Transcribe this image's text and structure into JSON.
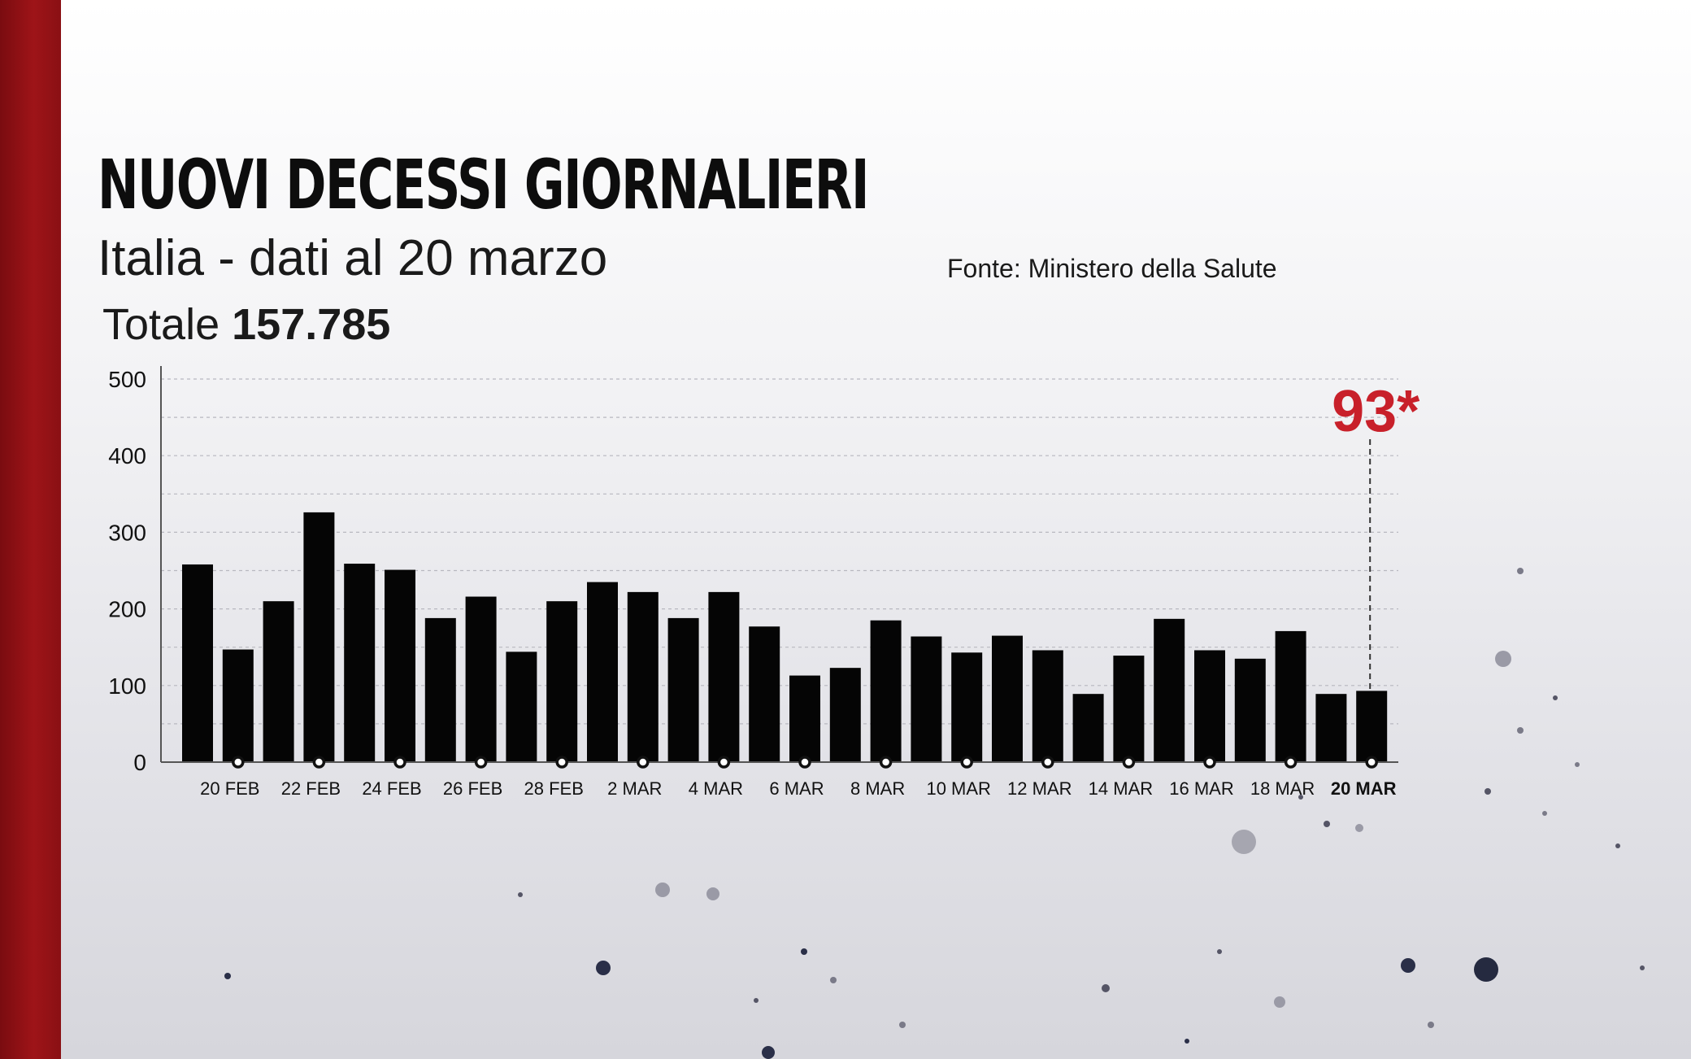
{
  "header": {
    "title": "NUOVI DECESSI GIORNALIERI",
    "subtitle": "Italia - dati al 20 marzo",
    "total_label": "Totale",
    "total_value": "157.785",
    "source": "Fonte: Ministero della Salute"
  },
  "colors": {
    "bar": "#050505",
    "accent": "#c8202a",
    "side_band": "#9e1418"
  },
  "chart_data": {
    "type": "bar",
    "title": "NUOVI DECESSI GIORNALIERI",
    "subtitle": "Italia - dati al 20 marzo",
    "xlabel": "",
    "ylabel": "",
    "ylim": [
      0,
      500
    ],
    "yticks": [
      0,
      100,
      200,
      300,
      400,
      500
    ],
    "grid": true,
    "categories": [
      "19 FEB",
      "20 FEB",
      "21 FEB",
      "22 FEB",
      "23 FEB",
      "24 FEB",
      "25 FEB",
      "26 FEB",
      "27 FEB",
      "28 FEB",
      "1 MAR",
      "2 MAR",
      "3 MAR",
      "4 MAR",
      "5 MAR",
      "6 MAR",
      "7 MAR",
      "8 MAR",
      "9 MAR",
      "10 MAR",
      "11 MAR",
      "12 MAR",
      "13 MAR",
      "14 MAR",
      "15 MAR",
      "16 MAR",
      "17 MAR",
      "18 MAR",
      "19 MAR",
      "20 MAR"
    ],
    "values": [
      258,
      147,
      210,
      326,
      259,
      251,
      188,
      216,
      144,
      210,
      235,
      222,
      188,
      222,
      177,
      113,
      123,
      185,
      164,
      143,
      165,
      146,
      89,
      139,
      187,
      146,
      135,
      171,
      89,
      93
    ],
    "xtick_labels": [
      "20 FEB",
      "22 FEB",
      "24 FEB",
      "26 FEB",
      "28 FEB",
      "2 MAR",
      "4 MAR",
      "6 MAR",
      "8 MAR",
      "10 MAR",
      "12 MAR",
      "14 MAR",
      "16 MAR",
      "18 MAR",
      "20 MAR"
    ],
    "highlight_label": "20 MAR",
    "annotation": {
      "category": "20 MAR",
      "text": "93*"
    }
  }
}
